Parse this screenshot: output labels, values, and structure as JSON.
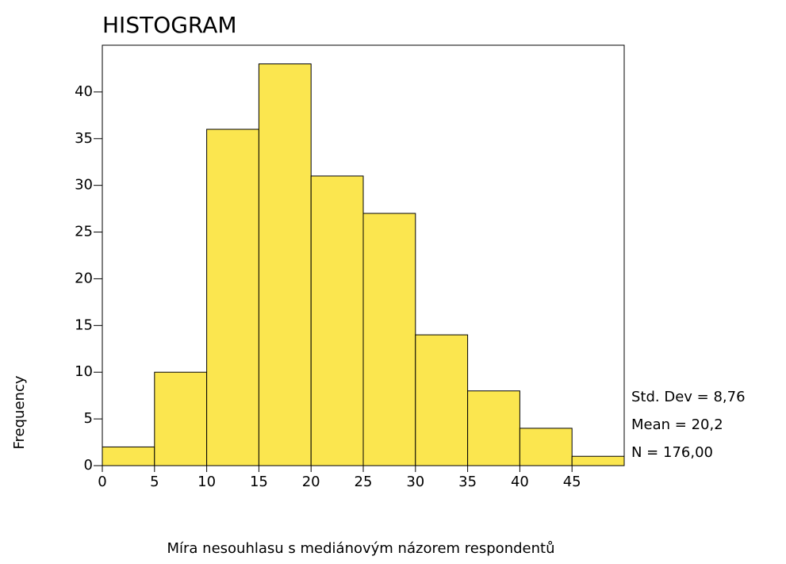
{
  "chart_data": {
    "type": "histogram",
    "title": "HISTOGRAM",
    "x_label": "Míra nesouhlasu s mediánovým názorem respondentů",
    "y_label": "Frequency",
    "bins": [
      0,
      5,
      10,
      15,
      20,
      25,
      30,
      35,
      40,
      45,
      50
    ],
    "counts": [
      2,
      10,
      36,
      43,
      31,
      27,
      14,
      8,
      4,
      1
    ],
    "color": "#fbe64f",
    "xlim": [
      0,
      50
    ],
    "xticks": [
      0,
      5,
      10,
      15,
      20,
      25,
      30,
      35,
      40,
      45
    ],
    "ylim": [
      0,
      45
    ],
    "yticks": [
      0,
      5,
      10,
      15,
      20,
      25,
      30,
      35,
      40
    ],
    "annotations": [
      "Std. Dev = 8,76",
      "Mean = 20,2",
      "N = 176,00"
    ]
  }
}
